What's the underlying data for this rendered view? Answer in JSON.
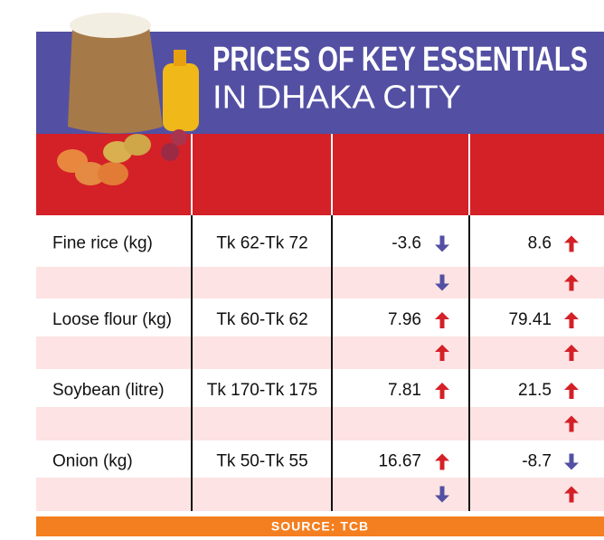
{
  "header": {
    "title_line_1": "PRICES OF KEY ESSENTIALS",
    "title_line_2": "IN DHAKA CITY"
  },
  "table": {
    "rows": [
      {
        "item": "Fine rice (kg)",
        "price": "Tk 62-Tk 72",
        "change_1": -3.6,
        "change_2": 8.6,
        "arrows": [
          "down",
          "up"
        ],
        "sub_arrows": [
          "down",
          "up"
        ]
      },
      {
        "item": "Loose flour (kg)",
        "price": "Tk 60-Tk 62",
        "change_1": 7.96,
        "change_2": 79.41,
        "arrows": [
          "up",
          "up"
        ],
        "sub_arrows": [
          "up",
          "up"
        ]
      },
      {
        "item": "Soybean (litre)",
        "price": "Tk 170-Tk 175",
        "change_1": 7.81,
        "change_2": 21.5,
        "arrows": [
          "up",
          "up"
        ],
        "sub_arrows": [
          null,
          "up"
        ]
      },
      {
        "item": "Onion (kg)",
        "price": "Tk 50-Tk 55",
        "change_1": 16.67,
        "change_2": -8.7,
        "arrows": [
          "up",
          "down"
        ],
        "sub_arrows": [
          "down",
          "up"
        ]
      }
    ]
  },
  "footer": {
    "source": "SOURCE: TCB"
  }
}
